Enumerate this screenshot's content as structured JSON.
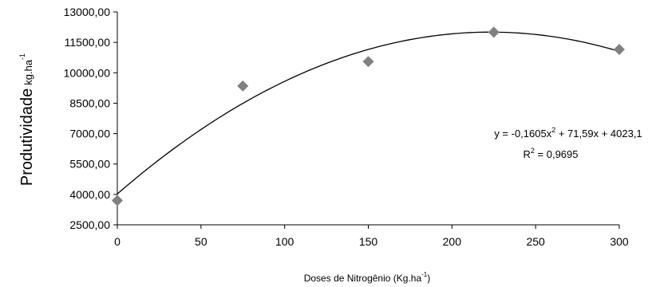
{
  "chart_data": {
    "type": "scatter",
    "xlabel": "Doses de Nitrogênio (Kg.ha",
    "xlabel_sup": "-1",
    "xlabel_close": ")",
    "ylabel": "Produtividade",
    "ylabel_unit": "kg.ha",
    "ylabel_sup": "-1",
    "xlim": [
      0,
      300
    ],
    "ylim": [
      2500,
      13000
    ],
    "x_ticks": [
      "0",
      "50",
      "100",
      "150",
      "200",
      "250",
      "300"
    ],
    "y_ticks": [
      "2500,00",
      "4000,00",
      "5500,00",
      "7000,00",
      "8500,00",
      "10000,00",
      "11500,00",
      "13000,00"
    ],
    "grid": false,
    "marker": "diamond",
    "marker_color": "#808080",
    "series": [
      {
        "x": [
          0,
          75,
          150,
          225,
          300
        ],
        "y": [
          3700,
          9350,
          10550,
          12000,
          11150
        ]
      }
    ],
    "trendline": {
      "type": "polynomial",
      "coefficients": [
        -0.1605,
        71.59,
        4023.1
      ],
      "color": "#000000",
      "equation_lhs": "y = -0,1605x",
      "equation_sup": "2",
      "equation_rhs": " + 71,59x + 4023,1",
      "r2_lhs": "R",
      "r2_sup": "2",
      "r2_rhs": " = 0,9695"
    }
  }
}
